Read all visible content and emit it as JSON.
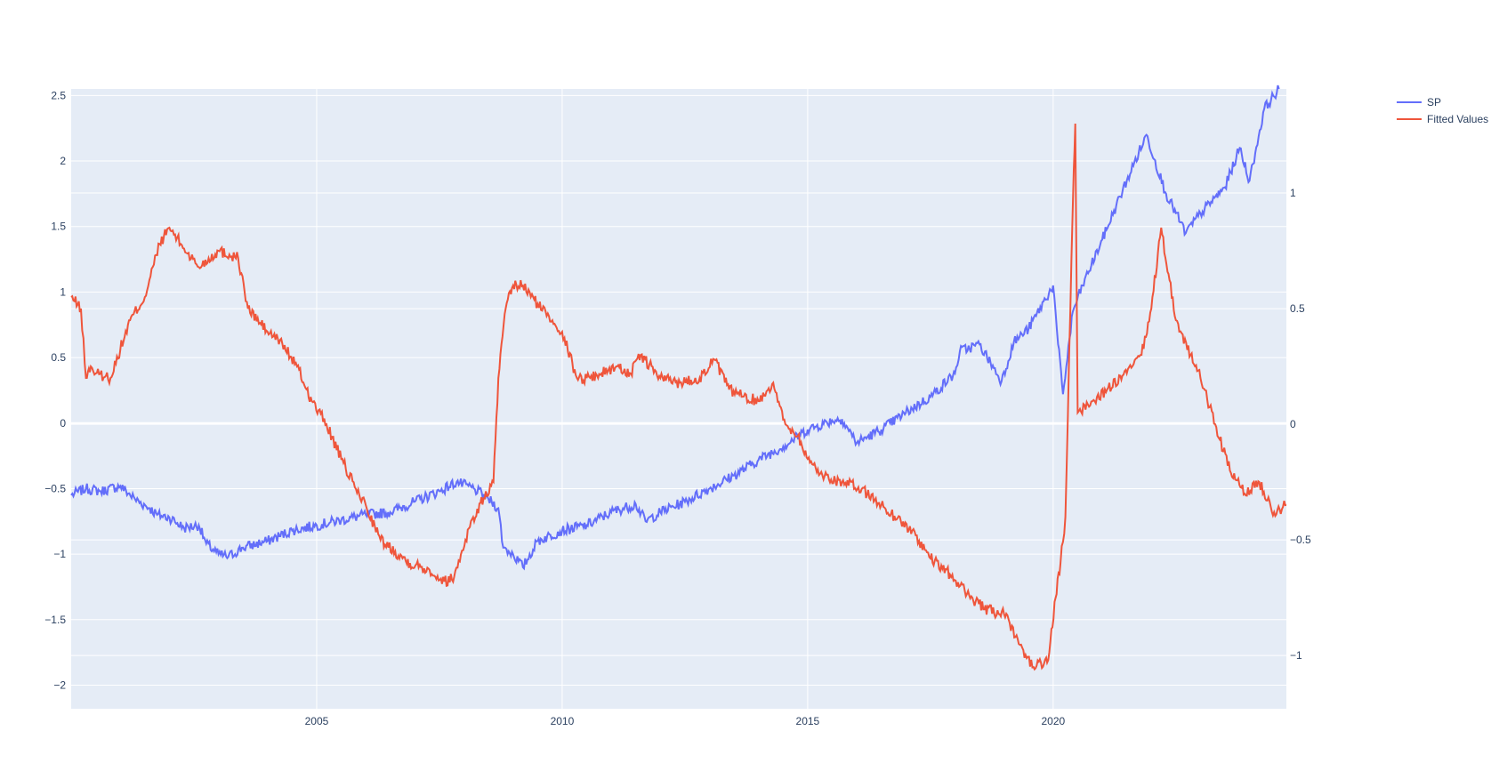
{
  "chart_data": {
    "type": "line",
    "title": "",
    "xlabel": "",
    "ylabel": "",
    "xlim": [
      2000.0,
      2024.75
    ],
    "ylim_left": [
      -2.18,
      2.55
    ],
    "ylim_right": [
      -1.23,
      1.45
    ],
    "grid": true,
    "legend_position": "top-right",
    "x_ticks": [
      2005,
      2010,
      2015,
      2020
    ],
    "x_tick_labels": [
      "2005",
      "2010",
      "2015",
      "2020"
    ],
    "y_left_ticks": [
      -2,
      -1.5,
      -1,
      -0.5,
      0,
      0.5,
      1,
      1.5,
      2,
      2.5
    ],
    "y_left_tick_labels": [
      "−2",
      "−1.5",
      "−1",
      "−0.5",
      "0",
      "0.5",
      "1",
      "1.5",
      "2",
      "2.5"
    ],
    "y_right_ticks": [
      -1,
      -0.5,
      0,
      0.5,
      1
    ],
    "y_right_tick_labels": [
      "−1",
      "−0.5",
      "0",
      "0.5",
      "1"
    ],
    "series": [
      {
        "name": "SP",
        "axis": "left",
        "color": "#636efa",
        "x": [
          2000.0,
          2000.3,
          2000.6,
          2001.0,
          2001.3,
          2001.6,
          2001.75,
          2002.0,
          2002.3,
          2002.6,
          2002.75,
          2003.0,
          2003.2,
          2003.5,
          2004.0,
          2004.5,
          2005.0,
          2005.5,
          2006.0,
          2006.5,
          2007.0,
          2007.5,
          2007.85,
          2008.2,
          2008.5,
          2008.7,
          2008.8,
          2009.0,
          2009.2,
          2009.5,
          2010.0,
          2010.5,
          2011.0,
          2011.5,
          2011.7,
          2012.0,
          2012.5,
          2013.0,
          2013.5,
          2014.0,
          2014.5,
          2015.0,
          2015.5,
          2015.7,
          2016.0,
          2016.5,
          2017.0,
          2017.5,
          2018.0,
          2018.1,
          2018.5,
          2018.95,
          2019.2,
          2019.5,
          2020.0,
          2020.1,
          2020.2,
          2020.4,
          2020.6,
          2021.0,
          2021.5,
          2021.9,
          2022.3,
          2022.7,
          2023.0,
          2023.5,
          2023.8,
          2024.0,
          2024.3,
          2024.6
        ],
        "y": [
          -0.55,
          -0.5,
          -0.52,
          -0.48,
          -0.58,
          -0.65,
          -0.7,
          -0.72,
          -0.8,
          -0.78,
          -0.92,
          -1.0,
          -1.02,
          -0.95,
          -0.9,
          -0.82,
          -0.78,
          -0.74,
          -0.7,
          -0.68,
          -0.6,
          -0.52,
          -0.45,
          -0.5,
          -0.58,
          -0.65,
          -0.95,
          -1.0,
          -1.1,
          -0.9,
          -0.82,
          -0.78,
          -0.68,
          -0.62,
          -0.75,
          -0.68,
          -0.6,
          -0.5,
          -0.4,
          -0.28,
          -0.18,
          -0.05,
          0.02,
          0.03,
          -0.15,
          -0.05,
          0.08,
          0.2,
          0.38,
          0.55,
          0.6,
          0.32,
          0.62,
          0.72,
          1.05,
          0.6,
          0.22,
          0.85,
          1.05,
          1.4,
          1.85,
          2.2,
          1.75,
          1.45,
          1.6,
          1.8,
          2.1,
          1.85,
          2.4,
          2.55
        ]
      },
      {
        "name": "Fitted Values",
        "axis": "right",
        "color": "#ef553b",
        "x": [
          2000.0,
          2000.2,
          2000.3,
          2000.4,
          2000.5,
          2000.8,
          2001.2,
          2001.5,
          2001.8,
          2002.0,
          2002.3,
          2002.6,
          2003.0,
          2003.4,
          2003.6,
          2004.0,
          2004.3,
          2004.6,
          2004.9,
          2005.2,
          2005.5,
          2005.8,
          2006.0,
          2006.3,
          2006.6,
          2006.9,
          2007.3,
          2007.6,
          2007.8,
          2008.1,
          2008.4,
          2008.6,
          2008.7,
          2008.85,
          2009.0,
          2009.2,
          2009.5,
          2009.8,
          2010.0,
          2010.3,
          2010.5,
          2010.8,
          2011.1,
          2011.4,
          2011.6,
          2012.0,
          2012.4,
          2012.8,
          2013.1,
          2013.4,
          2013.7,
          2014.0,
          2014.3,
          2014.5,
          2014.8,
          2015.0,
          2015.3,
          2015.7,
          2016.1,
          2016.5,
          2016.9,
          2017.2,
          2017.5,
          2017.9,
          2018.2,
          2018.6,
          2019.0,
          2019.3,
          2019.6,
          2019.9,
          2020.05,
          2020.15,
          2020.25,
          2020.35,
          2020.42,
          2020.45,
          2020.5,
          2020.8,
          2021.1,
          2021.5,
          2021.8,
          2022.0,
          2022.2,
          2022.35,
          2022.5,
          2022.8,
          2023.0,
          2023.3,
          2023.6,
          2023.9,
          2024.2,
          2024.5,
          2024.75
        ],
        "y": [
          0.55,
          0.5,
          0.2,
          0.25,
          0.22,
          0.2,
          0.45,
          0.55,
          0.78,
          0.85,
          0.76,
          0.68,
          0.75,
          0.72,
          0.5,
          0.4,
          0.35,
          0.25,
          0.1,
          0.0,
          -0.15,
          -0.28,
          -0.35,
          -0.5,
          -0.55,
          -0.6,
          -0.63,
          -0.68,
          -0.66,
          -0.45,
          -0.32,
          -0.25,
          0.2,
          0.5,
          0.6,
          0.6,
          0.52,
          0.45,
          0.4,
          0.2,
          0.2,
          0.22,
          0.25,
          0.22,
          0.3,
          0.2,
          0.18,
          0.2,
          0.28,
          0.15,
          0.12,
          0.1,
          0.18,
          0.02,
          -0.05,
          -0.15,
          -0.22,
          -0.25,
          -0.28,
          -0.35,
          -0.42,
          -0.48,
          -0.58,
          -0.65,
          -0.72,
          -0.8,
          -0.82,
          -0.95,
          -1.05,
          -1.02,
          -0.75,
          -0.6,
          -0.4,
          0.5,
          1.1,
          1.3,
          0.05,
          0.1,
          0.15,
          0.22,
          0.3,
          0.5,
          0.85,
          0.65,
          0.45,
          0.3,
          0.2,
          0.0,
          -0.2,
          -0.3,
          -0.25,
          -0.38,
          -0.35
        ]
      }
    ]
  }
}
